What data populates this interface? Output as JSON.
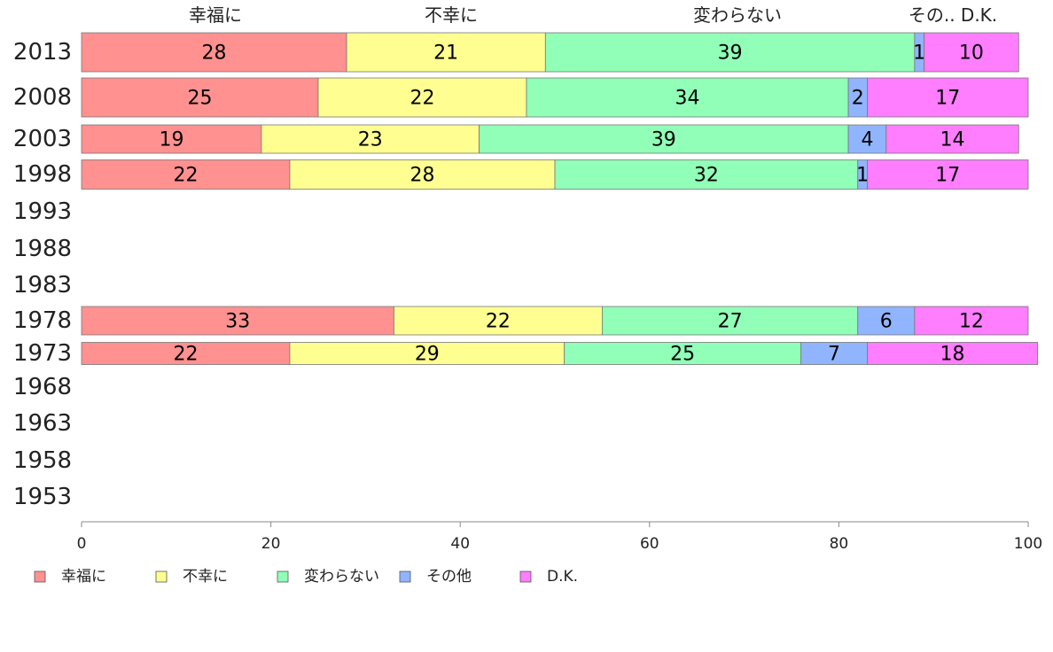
{
  "chart_data": {
    "type": "bar",
    "orientation": "horizontal",
    "stacked": true,
    "categories": [
      "2013",
      "2008",
      "2003",
      "1998",
      "1993",
      "1988",
      "1983",
      "1978",
      "1973",
      "1968",
      "1963",
      "1958",
      "1953"
    ],
    "series": [
      {
        "name": "幸福に",
        "color": "#ff9190",
        "values": [
          28,
          25,
          19,
          22,
          null,
          null,
          null,
          33,
          22,
          null,
          null,
          null,
          null
        ]
      },
      {
        "name": "不幸に",
        "color": "#ffff91",
        "values": [
          21,
          22,
          23,
          28,
          null,
          null,
          null,
          22,
          29,
          null,
          null,
          null,
          null
        ]
      },
      {
        "name": "変わらない",
        "color": "#91ffb7",
        "values": [
          39,
          34,
          39,
          32,
          null,
          null,
          null,
          27,
          25,
          null,
          null,
          null,
          null
        ]
      },
      {
        "name": "その他",
        "color": "#91b4ff",
        "values": [
          1,
          2,
          4,
          1,
          null,
          null,
          null,
          6,
          7,
          null,
          null,
          null,
          null
        ]
      },
      {
        "name": "D.K.",
        "color": "#ff7dff",
        "values": [
          10,
          17,
          14,
          17,
          null,
          null,
          null,
          12,
          18,
          null,
          null,
          null,
          null
        ]
      }
    ],
    "top_labels": [
      "幸福に",
      "不幸に",
      "変わらない",
      "その.. D.K."
    ],
    "xlim": [
      0,
      100
    ],
    "x_ticks": [
      "0",
      "20",
      "40",
      "60",
      "80",
      "100"
    ],
    "grid": false,
    "legend_position": "bottom-left"
  }
}
